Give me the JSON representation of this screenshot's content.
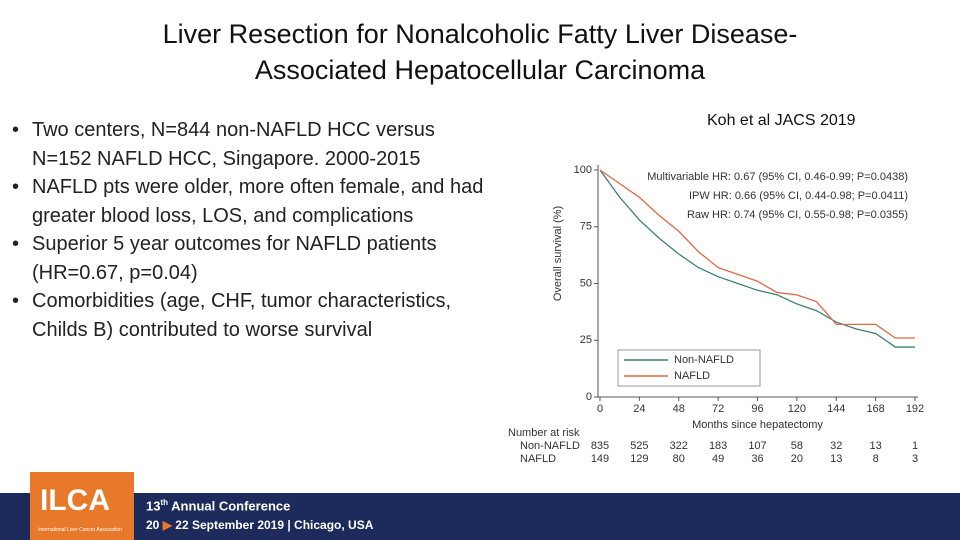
{
  "header": {
    "title_lines": [
      "Liver Resection for Nonalcoholic Fatty Liver Disease-",
      "Associated Hepatocellular Carcinoma"
    ]
  },
  "bullets": [
    "Two centers, N=844 non-NAFLD HCC versus  N=152 NAFLD HCC, Singapore. 2000-2015",
    "NAFLD pts were older, more often female, and had greater blood loss, LOS, and complications",
    "Superior 5 year outcomes for NAFLD patients (HR=0.67, p=0.04)",
    "Comorbidities (age, CHF, tumor characteristics, Childs B)  contributed to worse survival"
  ],
  "citation": "Koh et al  JACS 2019",
  "chart_data": {
    "type": "line",
    "ylabel": "Overall survival (%)",
    "xlabel": "Months since hepatectomy",
    "x": [
      0,
      12,
      24,
      36,
      48,
      60,
      72,
      84,
      96,
      108,
      120,
      132,
      144,
      156,
      168,
      180,
      192
    ],
    "series": [
      {
        "name": "Non-NAFLD",
        "color": "#3f7f70",
        "values": [
          100,
          88,
          78,
          70,
          63,
          57,
          53,
          50,
          47,
          45,
          41,
          38,
          33,
          30,
          28,
          22,
          22
        ]
      },
      {
        "name": "NAFLD",
        "color": "#dd6a45",
        "values": [
          100,
          94,
          88,
          80,
          73,
          64,
          57,
          54,
          51,
          46,
          45,
          42,
          32,
          32,
          32,
          26,
          26
        ]
      }
    ],
    "xlim": [
      0,
      192
    ],
    "xticks": [
      0,
      24,
      48,
      72,
      96,
      120,
      144,
      168,
      192
    ],
    "ylim": [
      0,
      100
    ],
    "yticks": [
      0,
      25,
      50,
      75,
      100
    ],
    "grid": false,
    "legend": "lower left",
    "annotations": [
      "Multivariable HR: 0.67 (95% CI, 0.46-0.99; P=0.0438)",
      "IPW HR: 0.66 (95% CI, 0.44-0.98; P=0.0411)",
      "Raw HR: 0.74 (95% CI, 0.55-0.98; P=0.0355)"
    ],
    "risk_table": {
      "title": "Number at risk",
      "rows": [
        {
          "name": "Non-NAFLD",
          "counts": [
            835,
            525,
            322,
            183,
            107,
            58,
            32,
            13,
            1
          ]
        },
        {
          "name": "NAFLD",
          "counts": [
            149,
            129,
            80,
            49,
            36,
            20,
            13,
            8,
            3
          ]
        }
      ]
    }
  },
  "footer": {
    "logo": "ILCA",
    "logo_sub": "International Liver Cancer Association",
    "edition": "13",
    "edition_suffix": "th",
    "event": "Annual Conference",
    "day_start": "20",
    "dates": "22 September 2019",
    "city": "Chicago, USA"
  }
}
